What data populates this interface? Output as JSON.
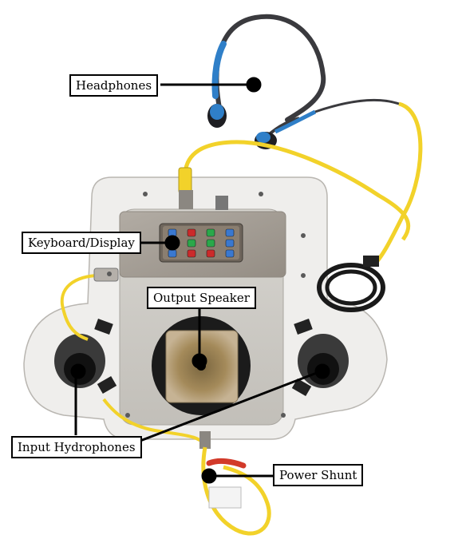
{
  "labels": {
    "headphones": "Headphones",
    "keyboard_display": "Keyboard/Display",
    "output_speaker": "Output Speaker",
    "input_hydrophones": "Input Hydrophones",
    "power_shunt": "Power Shunt"
  },
  "colors": {
    "cable_yellow": "#f2d22a",
    "headphone_blue": "#2f7fc8",
    "housing": "#c9c7c2",
    "panel": "#a59f96",
    "speaker_ring": "#1b1b1b",
    "speaker_cone": "#a48a5a",
    "button_blue": "#3a78d0",
    "button_green": "#2aa84a",
    "button_red": "#cc2a2a"
  }
}
